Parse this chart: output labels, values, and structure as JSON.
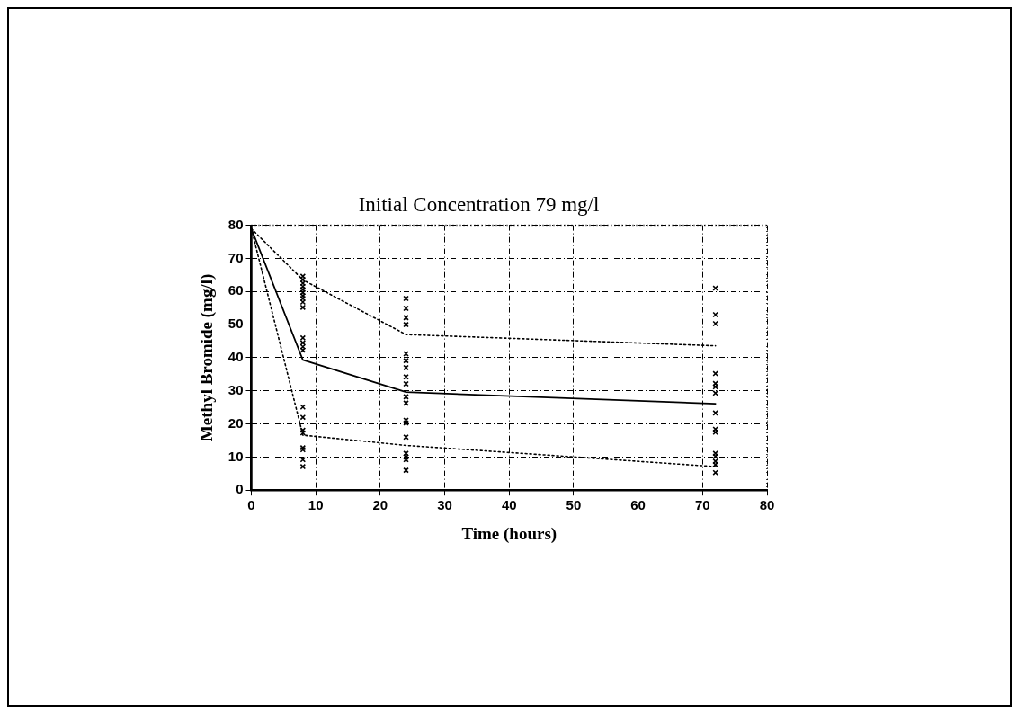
{
  "chart_data": {
    "type": "scatter",
    "title": "Initial Concentration 79 mg/l",
    "xlabel": "Time (hours)",
    "ylabel": "Methyl Bromide (mg/l)",
    "xlim": [
      0,
      80
    ],
    "xticks": [
      0,
      10,
      20,
      30,
      40,
      50,
      60,
      70,
      80
    ],
    "ylim": [
      0,
      80
    ],
    "yticks": [
      0,
      10,
      20,
      30,
      40,
      50,
      60,
      70,
      80
    ],
    "grid": true,
    "legend": false,
    "series": [
      {
        "type": "scatter",
        "marker": "cross",
        "color": "#000000",
        "x": [
          8,
          8,
          8,
          8,
          8,
          8,
          8,
          8,
          8,
          8,
          8,
          8,
          8,
          8,
          8,
          8,
          8,
          8,
          8,
          8,
          8,
          8,
          24,
          24,
          24,
          24,
          24,
          24,
          24,
          24,
          24,
          24,
          24,
          24,
          24,
          24,
          24,
          24,
          24,
          24,
          72,
          72,
          72,
          72,
          72,
          72,
          72,
          72,
          72,
          72,
          72,
          72,
          72,
          72,
          72
        ],
        "values": [
          64.6,
          63.6,
          62.5,
          61.5,
          60.6,
          59.7,
          58.7,
          57.9,
          56.8,
          55.2,
          46,
          44.5,
          43.3,
          42.3,
          25.1,
          22,
          18.1,
          17.3,
          12.8,
          12.2,
          9.2,
          7.1,
          57.9,
          54.9,
          52.1,
          50,
          41.2,
          39.1,
          37,
          34.2,
          32.1,
          28.2,
          26.3,
          21.1,
          20.3,
          16,
          11.1,
          10,
          9.2,
          6,
          61,
          53,
          50.3,
          35.2,
          32.2,
          31.2,
          29.3,
          23.3,
          18.4,
          17.5,
          11.1,
          10.2,
          8.7,
          7.7,
          5.3
        ]
      },
      {
        "type": "line",
        "marker": "none",
        "line_style": "solid",
        "color": "#000000",
        "x": [
          0,
          8,
          24,
          72
        ],
        "values": [
          79,
          39.3,
          29.6,
          26.1
        ]
      },
      {
        "type": "line",
        "marker": "none",
        "line_style": "dotted",
        "color": "#000000",
        "x": [
          0,
          8,
          24,
          72
        ],
        "values": [
          79,
          63.5,
          47,
          43.6
        ]
      },
      {
        "type": "line",
        "marker": "none",
        "line_style": "dotted",
        "color": "#000000",
        "x": [
          0,
          8,
          24,
          72
        ],
        "values": [
          79,
          16.6,
          13.5,
          7.1
        ]
      }
    ]
  }
}
